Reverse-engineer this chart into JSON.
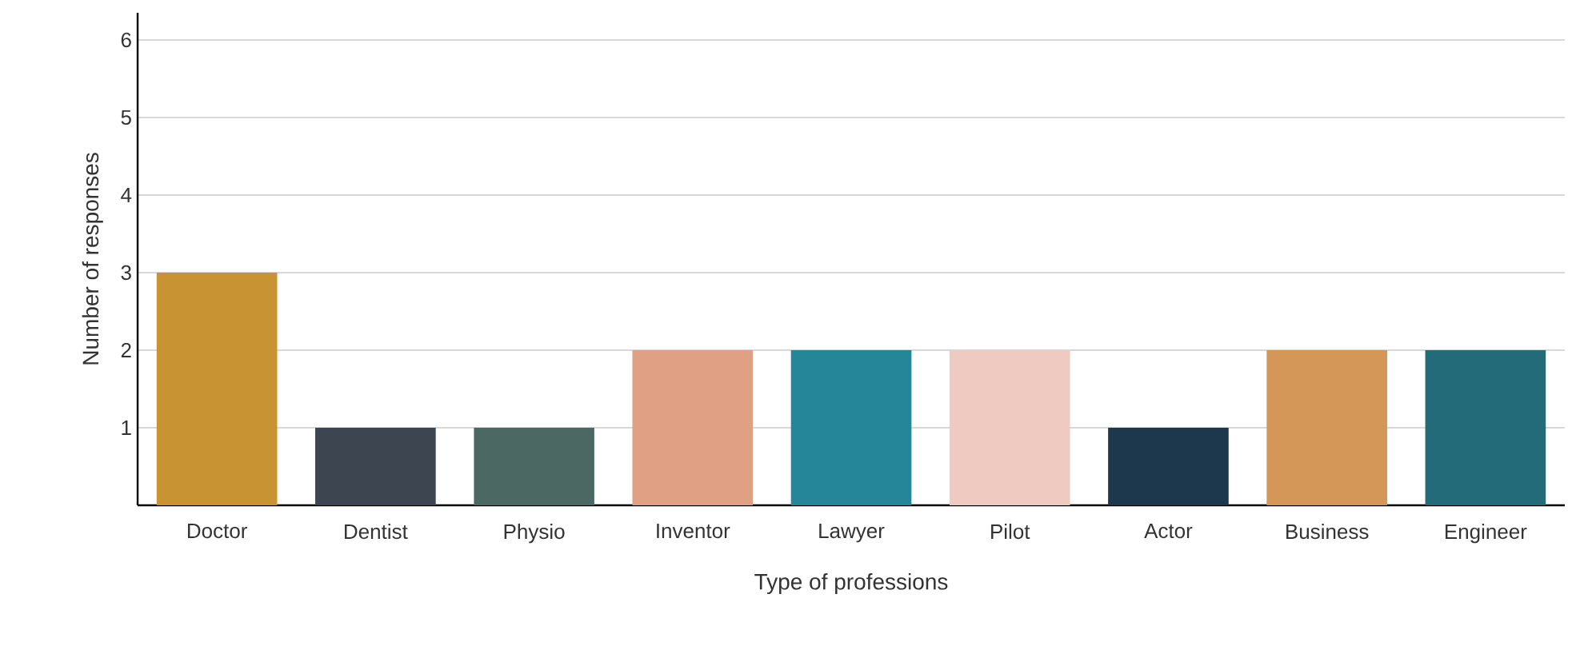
{
  "chart_data": {
    "type": "bar",
    "xlabel": "Type of professions",
    "ylabel": "Number of responses",
    "categories": [
      "Doctor",
      "Dentist",
      "Physio",
      "Inventor",
      "Lawyer",
      "Pilot",
      "Actor",
      "Business",
      "Engineer"
    ],
    "values": [
      3,
      1,
      1,
      2,
      2,
      2,
      1,
      2,
      2
    ],
    "colors": [
      "#c79333",
      "#3d4650",
      "#4b6962",
      "#dfa083",
      "#25869a",
      "#eecac0",
      "#1d374c",
      "#d49758",
      "#246b7a"
    ],
    "ylim": [
      0,
      6.35
    ],
    "yticks": [
      1,
      2,
      3,
      4,
      5,
      6
    ],
    "grid": "y"
  }
}
